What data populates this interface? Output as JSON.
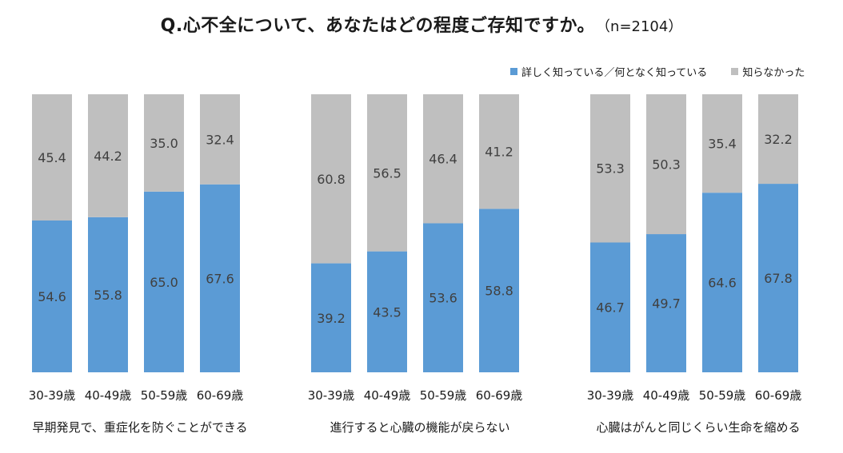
{
  "title": "Q.心不全について、あなたはどの程度ご存知ですか。",
  "sample_note": "（n=2104）",
  "colors": {
    "known": "#5B9BD5",
    "unknown": "#BFBFBF"
  },
  "legend": {
    "known": "詳しく知っている／何となく知っている",
    "unknown": "知らなかった"
  },
  "chart_data": [
    {
      "type": "bar",
      "stacked": true,
      "title": "早期発見で、重症化を防ぐことができる",
      "categories": [
        "30-39歳",
        "40-49歳",
        "50-59歳",
        "60-69歳"
      ],
      "series": [
        {
          "name": "詳しく知っている／何となく知っている",
          "values": [
            54.6,
            55.8,
            65.0,
            67.6
          ]
        },
        {
          "name": "知らなかった",
          "values": [
            45.4,
            44.2,
            35.0,
            32.4
          ]
        }
      ],
      "ylim": [
        0,
        100
      ]
    },
    {
      "type": "bar",
      "stacked": true,
      "title": "進行すると心臓の機能が戻らない",
      "categories": [
        "30-39歳",
        "40-49歳",
        "50-59歳",
        "60-69歳"
      ],
      "series": [
        {
          "name": "詳しく知っている／何となく知っている",
          "values": [
            39.2,
            43.5,
            53.6,
            58.8
          ]
        },
        {
          "name": "知らなかった",
          "values": [
            60.8,
            56.5,
            46.4,
            41.2
          ]
        }
      ],
      "ylim": [
        0,
        100
      ]
    },
    {
      "type": "bar",
      "stacked": true,
      "title": "心臓はがんと同じくらい生命を縮める",
      "categories": [
        "30-39歳",
        "40-49歳",
        "50-59歳",
        "60-69歳"
      ],
      "series": [
        {
          "name": "詳しく知っている／何となく知っている",
          "values": [
            46.7,
            49.7,
            64.6,
            67.8
          ]
        },
        {
          "name": "知らなかった",
          "values": [
            53.3,
            50.3,
            35.4,
            32.2
          ]
        }
      ],
      "ylim": [
        0,
        100
      ]
    }
  ]
}
